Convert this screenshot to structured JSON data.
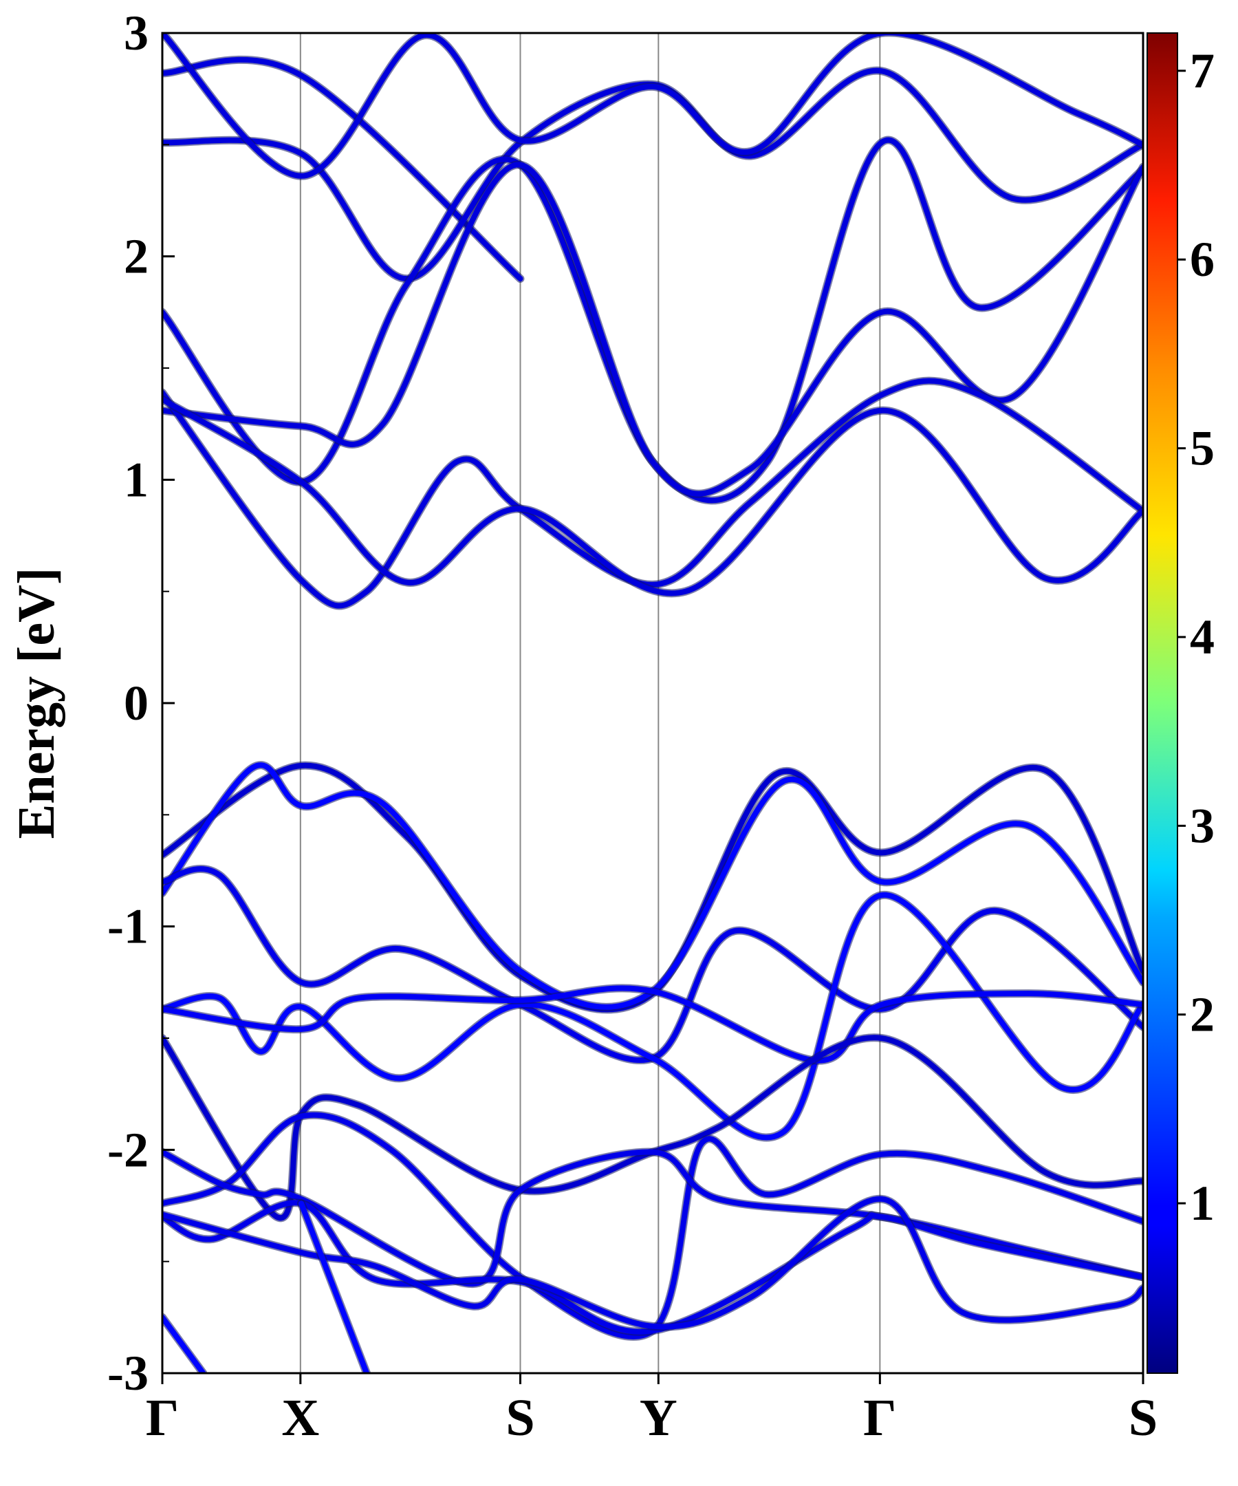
{
  "chart_data": {
    "type": "line",
    "title": "",
    "xlabel": "",
    "ylabel": "Energy [eV]",
    "ylim": [
      -3,
      3
    ],
    "yticks": [
      "-3",
      "-2",
      "-1",
      "0",
      "1",
      "2",
      "3"
    ],
    "kpath_labels": [
      "Γ",
      "X",
      "S",
      "Y",
      "Γ",
      "S"
    ],
    "kpath_positions": [
      0,
      0.845,
      2.19,
      3.035,
      4.39,
      6.0
    ],
    "colorbar": {
      "colormap": "jet",
      "range": [
        0.1,
        7.2
      ],
      "ticks": [
        "1",
        "2",
        "3",
        "4",
        "5",
        "6",
        "7"
      ]
    },
    "series": [
      {
        "x": [
          0,
          0.85,
          2.19
        ],
        "y": [
          2.82,
          2.81,
          1.9
        ],
        "weight": 0.5
      },
      {
        "x": [
          0,
          0.85,
          1.5,
          2.19,
          3.0,
          3.6,
          4.4,
          5.2,
          6.0
        ],
        "y": [
          2.51,
          2.46,
          1.9,
          2.51,
          2.77,
          2.45,
          2.83,
          2.26,
          2.5
        ],
        "weight": 0.5
      },
      {
        "x": [
          0,
          0.85,
          1.6,
          2.19,
          3.0,
          3.6,
          4.4,
          5.6,
          6.0
        ],
        "y": [
          3.0,
          2.36,
          2.99,
          2.52,
          2.76,
          2.47,
          3.0,
          2.64,
          2.5
        ],
        "weight": 0.5
      },
      {
        "x": [
          0,
          0.85,
          1.5,
          2.19,
          3.0,
          3.7,
          4.4,
          5.0,
          6.0
        ],
        "y": [
          1.75,
          0.99,
          1.88,
          2.41,
          1.08,
          1.08,
          2.51,
          1.77,
          2.39
        ],
        "weight": 0.5
      },
      {
        "x": [
          0,
          0.85,
          1.35,
          2.19,
          3.0,
          3.6,
          4.4,
          5.2,
          6.0
        ],
        "y": [
          1.31,
          1.24,
          1.25,
          2.41,
          1.08,
          1.05,
          1.75,
          1.37,
          2.4
        ],
        "weight": 0.5
      },
      {
        "x": [
          0,
          0.85,
          1.25,
          1.8,
          2.19,
          3.0,
          3.6,
          4.4,
          5.0,
          6.0
        ],
        "y": [
          1.39,
          0.55,
          0.5,
          1.08,
          0.87,
          0.53,
          0.9,
          1.38,
          1.38,
          0.86
        ],
        "weight": 0.5
      },
      {
        "x": [
          0,
          0.85,
          1.5,
          2.19,
          3.2,
          4.4,
          5.4,
          6.0
        ],
        "y": [
          1.36,
          0.99,
          0.54,
          0.87,
          0.5,
          1.31,
          0.56,
          0.86
        ],
        "weight": 0.5
      },
      {
        "x": [
          0,
          0.85,
          1.5,
          2.19,
          3.0,
          3.75,
          4.4,
          5.4,
          6.0
        ],
        "y": [
          -0.68,
          -0.28,
          -0.6,
          -1.22,
          -1.3,
          -0.32,
          -0.67,
          -0.3,
          -1.2
        ],
        "weight": 0.4
      },
      {
        "x": [
          0,
          0.55,
          0.85,
          1.35,
          2.19,
          3.0,
          3.8,
          4.4,
          5.3,
          6.0
        ],
        "y": [
          -0.85,
          -0.29,
          -0.46,
          -0.45,
          -1.2,
          -1.29,
          -0.35,
          -0.8,
          -0.55,
          -1.25
        ],
        "weight": 0.8
      },
      {
        "x": [
          0,
          0.35,
          0.85,
          1.45,
          2.19,
          3.0,
          3.5,
          4.4,
          5.1,
          6.0
        ],
        "y": [
          -0.8,
          -0.77,
          -1.25,
          -1.1,
          -1.35,
          -1.59,
          -1.02,
          -1.37,
          -0.93,
          -1.45
        ],
        "weight": 0.6
      },
      {
        "x": [
          0,
          0.35,
          0.6,
          0.85,
          1.45,
          2.19,
          3.0,
          3.8,
          4.4,
          5.5,
          6.0
        ],
        "y": [
          -1.37,
          -1.32,
          -1.56,
          -1.36,
          -1.68,
          -1.35,
          -1.59,
          -1.92,
          -0.86,
          -1.72,
          -1.35
        ],
        "weight": 0.8
      },
      {
        "x": [
          0,
          0.85,
          1.2,
          2.19,
          3.0,
          4.0,
          4.4,
          5.3,
          6.0
        ],
        "y": [
          -1.37,
          -1.46,
          -1.32,
          -1.33,
          -1.29,
          -1.6,
          -1.35,
          -1.3,
          -1.35
        ],
        "weight": 0.7
      },
      {
        "x": [
          0,
          0.7,
          0.85,
          1.2,
          2.19,
          3.0,
          3.4,
          4.4,
          5.4,
          6.0
        ],
        "y": [
          -1.5,
          -2.3,
          -1.84,
          -1.8,
          -2.18,
          -2.01,
          -1.9,
          -1.5,
          -2.1,
          -2.14
        ],
        "weight": 0.4
      },
      {
        "x": [
          0,
          0.4,
          0.85,
          1.4,
          2.19,
          3.0,
          3.3,
          3.7,
          4.4,
          5.1,
          6.0
        ],
        "y": [
          -2.24,
          -2.15,
          -1.85,
          -2.0,
          -2.57,
          -2.81,
          -1.97,
          -2.2,
          -2.02,
          -2.1,
          -2.32
        ],
        "weight": 0.6
      },
      {
        "x": [
          0,
          0.35,
          0.6,
          0.85,
          1.9,
          2.19,
          3.0,
          3.4,
          4.4,
          5.3,
          6.0
        ],
        "y": [
          -2.01,
          -2.15,
          -2.2,
          -2.22,
          -2.6,
          -2.18,
          -2.01,
          -2.22,
          -2.3,
          -2.45,
          -2.57
        ],
        "weight": 0.6
      },
      {
        "x": [
          0,
          0.3,
          0.85,
          1.3,
          2.19,
          3.0,
          4.2,
          4.4,
          5.0,
          6.0
        ],
        "y": [
          -2.3,
          -2.4,
          -2.24,
          -2.58,
          -2.59,
          -2.81,
          -2.36,
          -2.3,
          -2.42,
          -2.57
        ],
        "weight": 0.6
      },
      {
        "x": [
          0,
          0.85,
          1.3,
          1.9,
          2.19,
          3.0,
          3.6,
          4.4,
          4.9,
          5.8,
          6.0
        ],
        "y": [
          -2.29,
          -2.46,
          -2.52,
          -2.7,
          -2.58,
          -2.79,
          -2.66,
          -2.22,
          -2.73,
          -2.7,
          -2.62
        ],
        "weight": 0.6
      },
      {
        "x": [
          0,
          0.25
        ],
        "y": [
          -2.75,
          -3.0
        ],
        "weight": 0.8
      },
      {
        "x": [
          1.25,
          0.85
        ],
        "y": [
          -3.0,
          -2.24
        ],
        "weight": 0.8
      }
    ]
  }
}
